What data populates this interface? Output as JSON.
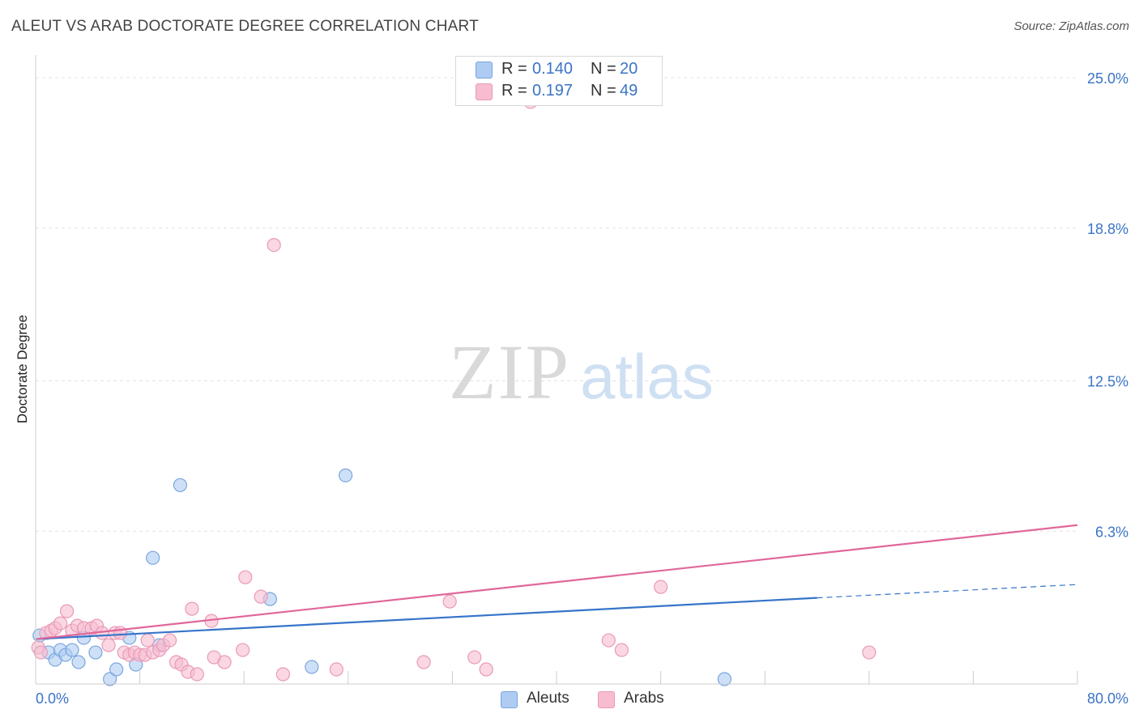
{
  "header": {
    "title": "ALEUT VS ARAB DOCTORATE DEGREE CORRELATION CHART",
    "source": "Source: ZipAtlas.com"
  },
  "watermark": {
    "zip": "ZIP",
    "atlas": "atlas"
  },
  "legend": {
    "rows": [
      {
        "r_label": "R =",
        "r_value": "0.140",
        "n_label": "N =",
        "n_value": "20",
        "color": "#aecbf2"
      },
      {
        "r_label": "R =",
        "r_value": "0.197",
        "n_label": "N =",
        "n_value": "49",
        "color": "#f7bcd0"
      }
    ]
  },
  "bottom_legend": {
    "items": [
      {
        "label": "Aleuts",
        "color": "#aecbf2"
      },
      {
        "label": "Arabs",
        "color": "#f7bcd0"
      }
    ]
  },
  "chart_data": {
    "type": "scatter",
    "title": "ALEUT VS ARAB DOCTORATE DEGREE CORRELATION CHART",
    "ylabel": "Doctorate Degree",
    "xlabel": "",
    "xlim": [
      0,
      80
    ],
    "ylim": [
      0,
      25
    ],
    "x_tick_labels": [
      "0.0%",
      "80.0%"
    ],
    "y_ticks": [
      {
        "value": 25.0,
        "label": "25.0%"
      },
      {
        "value": 18.8,
        "label": "18.8%"
      },
      {
        "value": 12.5,
        "label": "12.5%"
      },
      {
        "value": 6.3,
        "label": "6.3%"
      }
    ],
    "grid": true,
    "series": [
      {
        "name": "Aleuts",
        "color": "#3674c9",
        "point_fill": "#aecbf2",
        "point_stroke": "#7aa6dd",
        "points": [
          [
            0.3,
            2.0
          ],
          [
            1.0,
            1.3
          ],
          [
            1.5,
            1.0
          ],
          [
            1.9,
            1.4
          ],
          [
            2.3,
            1.2
          ],
          [
            2.8,
            1.4
          ],
          [
            3.3,
            0.9
          ],
          [
            3.7,
            1.9
          ],
          [
            4.6,
            1.3
          ],
          [
            5.7,
            0.2
          ],
          [
            6.2,
            0.6
          ],
          [
            7.2,
            1.9
          ],
          [
            7.7,
            0.8
          ],
          [
            9.0,
            5.2
          ],
          [
            9.5,
            1.6
          ],
          [
            11.1,
            8.2
          ],
          [
            18.0,
            3.5
          ],
          [
            21.2,
            0.7
          ],
          [
            23.8,
            8.6
          ],
          [
            52.9,
            0.2
          ]
        ],
        "trend": {
          "x0": 0,
          "y0": 1.85,
          "x1": 60,
          "y1": 3.55,
          "dash_to_x": 80,
          "dash_to_y": 4.1
        }
      },
      {
        "name": "Arabs",
        "color": "#e0679a",
        "point_fill": "#f7bcd0",
        "point_stroke": "#e99ab7",
        "points": [
          [
            0.2,
            1.5
          ],
          [
            0.4,
            1.3
          ],
          [
            0.8,
            2.1
          ],
          [
            1.2,
            2.2
          ],
          [
            1.5,
            2.3
          ],
          [
            1.9,
            2.5
          ],
          [
            2.4,
            3.0
          ],
          [
            2.8,
            2.2
          ],
          [
            3.2,
            2.4
          ],
          [
            3.7,
            2.3
          ],
          [
            4.3,
            2.3
          ],
          [
            4.7,
            2.4
          ],
          [
            5.1,
            2.1
          ],
          [
            5.6,
            1.6
          ],
          [
            6.1,
            2.1
          ],
          [
            6.5,
            2.1
          ],
          [
            6.8,
            1.3
          ],
          [
            7.2,
            1.2
          ],
          [
            7.6,
            1.3
          ],
          [
            8.0,
            1.2
          ],
          [
            8.4,
            1.2
          ],
          [
            8.6,
            1.8
          ],
          [
            9.0,
            1.3
          ],
          [
            9.5,
            1.4
          ],
          [
            9.8,
            1.6
          ],
          [
            10.3,
            1.8
          ],
          [
            10.8,
            0.9
          ],
          [
            11.2,
            0.8
          ],
          [
            11.7,
            0.5
          ],
          [
            12.0,
            3.1
          ],
          [
            12.4,
            0.4
          ],
          [
            13.5,
            2.6
          ],
          [
            13.7,
            1.1
          ],
          [
            14.5,
            0.9
          ],
          [
            15.9,
            1.4
          ],
          [
            16.1,
            4.4
          ],
          [
            17.3,
            3.6
          ],
          [
            18.3,
            18.1
          ],
          [
            19.0,
            0.4
          ],
          [
            23.1,
            0.6
          ],
          [
            29.8,
            0.9
          ],
          [
            31.8,
            3.4
          ],
          [
            33.7,
            1.1
          ],
          [
            34.6,
            0.6
          ],
          [
            44.0,
            1.8
          ],
          [
            45.0,
            1.4
          ],
          [
            48.0,
            4.0
          ],
          [
            64.0,
            1.3
          ],
          [
            38.0,
            24.0
          ]
        ],
        "trend": {
          "x0": 0,
          "y0": 1.85,
          "x1": 80,
          "y1": 6.55
        }
      }
    ]
  }
}
